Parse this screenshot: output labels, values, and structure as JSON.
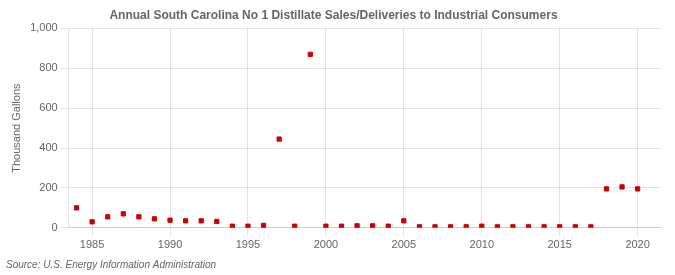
{
  "chart_data": {
    "type": "scatter",
    "title": "Annual South Carolina No 1 Distillate Sales/Deliveries to Industrial Consumers",
    "ylabel": "Thousand Gallons",
    "source": "Source: U.S. Energy Information Administration",
    "x": [
      1984,
      1985,
      1986,
      1987,
      1988,
      1989,
      1990,
      1991,
      1992,
      1993,
      1994,
      1995,
      1996,
      1997,
      1998,
      1999,
      2000,
      2001,
      2002,
      2003,
      2004,
      2005,
      2006,
      2007,
      2008,
      2009,
      2010,
      2011,
      2012,
      2013,
      2014,
      2015,
      2016,
      2017,
      2018,
      2019,
      2020
    ],
    "values": [
      100,
      30,
      55,
      70,
      55,
      45,
      38,
      35,
      35,
      32,
      8,
      8,
      12,
      445,
      8,
      870,
      8,
      8,
      10,
      10,
      8,
      35,
      5,
      5,
      5,
      5,
      8,
      5,
      5,
      5,
      5,
      5,
      5,
      5,
      195,
      205,
      195
    ],
    "color": "#cc0000",
    "marker": "square",
    "xlim": [
      1983.5,
      2021.5
    ],
    "xticks": [
      1985,
      1990,
      1995,
      2000,
      2005,
      2010,
      2015,
      2020
    ],
    "ylim": [
      0,
      1000
    ],
    "yticks": [
      0,
      200,
      400,
      600,
      800,
      {
        "value": 1000,
        "label": "1,000"
      }
    ],
    "grid": true
  }
}
